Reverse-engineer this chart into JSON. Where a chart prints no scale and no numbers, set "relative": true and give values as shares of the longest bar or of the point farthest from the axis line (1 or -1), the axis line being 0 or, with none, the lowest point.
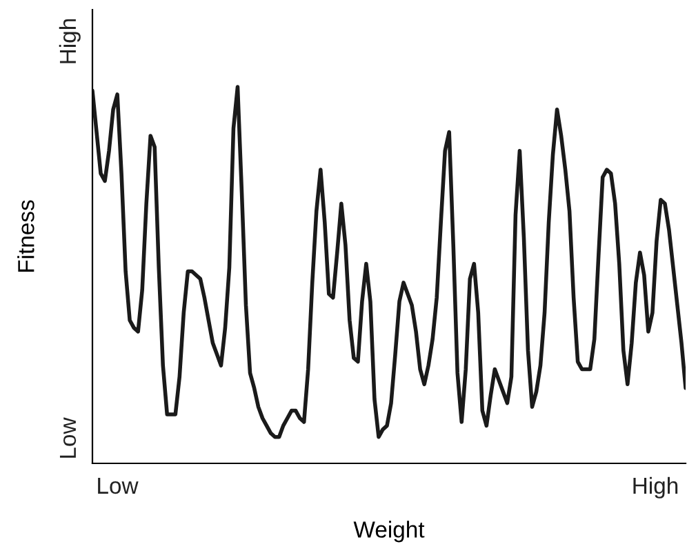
{
  "chart_data": {
    "type": "line",
    "xlabel": "Weight",
    "ylabel": "Fitness",
    "relative": true,
    "annotations": [
      "High",
      "Low",
      "Low",
      "High"
    ],
    "marker": "none",
    "line_style": "solid",
    "categories": [
      null,
      null,
      null,
      null,
      null,
      null,
      null,
      null,
      null,
      null,
      null,
      null,
      null,
      null,
      null,
      null,
      null,
      null,
      null,
      null,
      null,
      null,
      null,
      null,
      null,
      null,
      null,
      null,
      null,
      null,
      null,
      null,
      null,
      null,
      null,
      null,
      null,
      null,
      null,
      null,
      null,
      null,
      null,
      null,
      null,
      null,
      null,
      null,
      null,
      null,
      null,
      null,
      null,
      null,
      null,
      null,
      null,
      null,
      null,
      null,
      null,
      null,
      null,
      null,
      null,
      null,
      null,
      null,
      null,
      null,
      null,
      null,
      null,
      null,
      null,
      null,
      null,
      null,
      null,
      null,
      null,
      null,
      null,
      null,
      null,
      null,
      null,
      null,
      null,
      null,
      null,
      null,
      null,
      null,
      null,
      null,
      null,
      null,
      null,
      null,
      null,
      null,
      null,
      null,
      null,
      null,
      null,
      null,
      null,
      null,
      null,
      null,
      null,
      null,
      null,
      null,
      null,
      null,
      null,
      null,
      null,
      null,
      null,
      null,
      null,
      null,
      null,
      null,
      null,
      null,
      null,
      null,
      null,
      null,
      null,
      null,
      null,
      null,
      null,
      null,
      null,
      null,
      null,
      null
    ],
    "series": [
      {
        "color": "#1a1a1a",
        "values": [
          0.99,
          0.88,
          0.77,
          0.75,
          0.83,
          0.94,
          0.98,
          0.77,
          0.51,
          0.38,
          0.36,
          0.35,
          0.46,
          0.69,
          0.87,
          0.84,
          0.52,
          0.26,
          0.13,
          0.13,
          0.13,
          0.23,
          0.4,
          0.51,
          0.51,
          0.5,
          0.49,
          0.44,
          0.38,
          0.32,
          0.29,
          0.26,
          0.36,
          0.52,
          0.89,
          1,
          0.72,
          0.42,
          0.24,
          0.2,
          0.15,
          0.12,
          0.1,
          0.08,
          0.07,
          0.07,
          0.1,
          0.12,
          0.14,
          0.14,
          0.12,
          0.11,
          0.25,
          0.48,
          0.67,
          0.78,
          0.64,
          0.45,
          0.44,
          0.56,
          0.69,
          0.58,
          0.38,
          0.28,
          0.27,
          0.43,
          0.53,
          0.43,
          0.17,
          0.07,
          0.09,
          0.1,
          0.16,
          0.29,
          0.43,
          0.48,
          0.45,
          0.42,
          0.35,
          0.25,
          0.21,
          0.26,
          0.33,
          0.44,
          0.64,
          0.83,
          0.88,
          0.58,
          0.24,
          0.11,
          0.25,
          0.49,
          0.53,
          0.4,
          0.14,
          0.1,
          0.18,
          0.25,
          0.22,
          0.19,
          0.16,
          0.23,
          0.66,
          0.83,
          0.6,
          0.3,
          0.15,
          0.19,
          0.26,
          0.4,
          0.64,
          0.82,
          0.94,
          0.87,
          0.78,
          0.67,
          0.44,
          0.27,
          0.25,
          0.25,
          0.25,
          0.33,
          0.55,
          0.76,
          0.78,
          0.77,
          0.69,
          0.53,
          0.3,
          0.21,
          0.32,
          0.48,
          0.56,
          0.5,
          0.35,
          0.4,
          0.59,
          0.7,
          0.69,
          0.62,
          0.52,
          0.42,
          0.32,
          0.2
        ]
      }
    ]
  }
}
